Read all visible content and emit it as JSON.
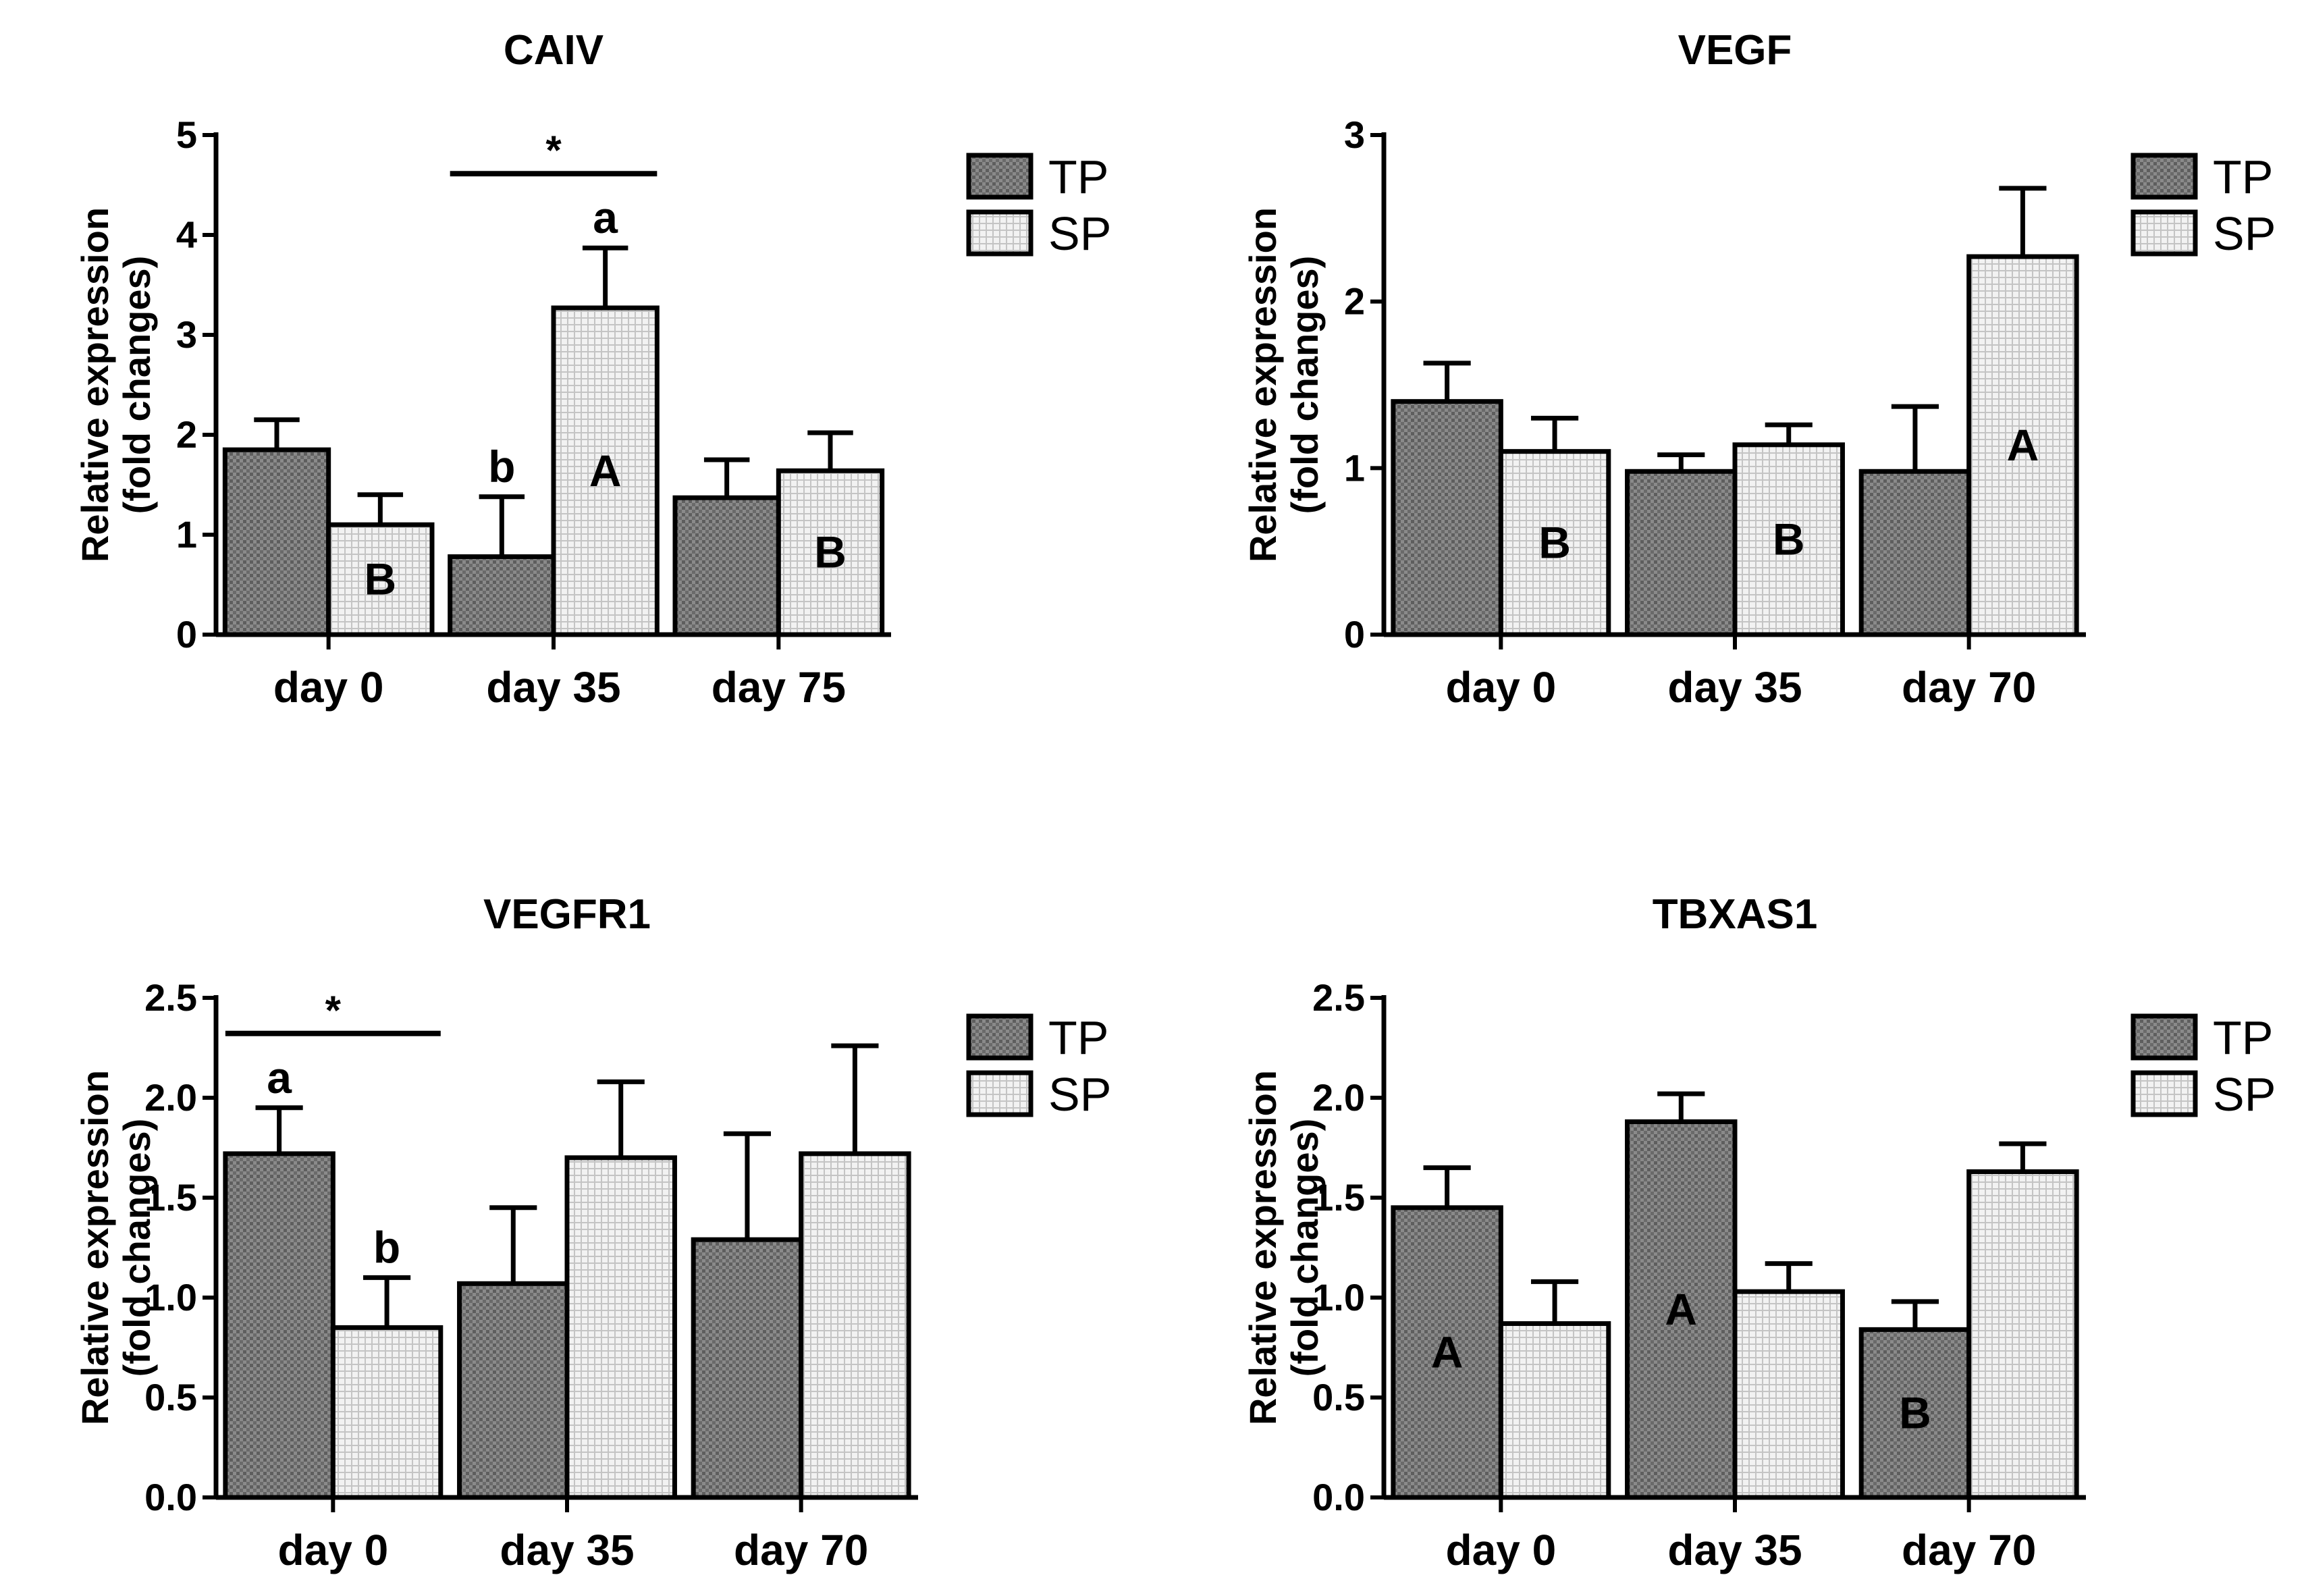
{
  "figure_title": "Relative expression of CAIV, VEGF, VEGFR1 and TBXAS1",
  "colors": {
    "tp": "#7a7a7a",
    "sp": "#d8d8d8",
    "axis": "#000000"
  },
  "chart_data": [
    {
      "type": "bar",
      "title": "CAIV",
      "xlabel": "",
      "ylabel": [
        "Relative expression",
        "(fold changes)"
      ],
      "ylim": [
        0,
        5
      ],
      "yticks": [
        "0",
        "1",
        "2",
        "3",
        "4",
        "5"
      ],
      "categories": [
        "day 0",
        "day 35",
        "day 75"
      ],
      "legend": [
        "TP",
        "SP"
      ],
      "series": [
        {
          "name": "TP",
          "values": [
            1.85,
            0.78,
            1.37
          ],
          "errors": [
            0.3,
            0.6,
            0.38
          ],
          "labels": [
            "",
            "b",
            ""
          ],
          "letters": [
            "",
            "",
            ""
          ]
        },
        {
          "name": "SP",
          "values": [
            1.1,
            3.27,
            1.64
          ],
          "errors": [
            0.3,
            0.6,
            0.38
          ],
          "labels": [
            "",
            "a",
            ""
          ],
          "letters": [
            "B",
            "A",
            "B"
          ]
        }
      ],
      "significance": [
        {
          "category_start": 1,
          "category_end": 1,
          "label": "*"
        }
      ]
    },
    {
      "type": "bar",
      "title": "VEGF",
      "xlabel": "",
      "ylabel": [
        "Relative expression",
        "(fold changes)"
      ],
      "ylim": [
        0,
        3
      ],
      "yticks": [
        "0",
        "1",
        "2",
        "3"
      ],
      "categories": [
        "day 0",
        "day 35",
        "day 70"
      ],
      "legend": [
        "TP",
        "SP"
      ],
      "series": [
        {
          "name": "TP",
          "values": [
            1.4,
            0.98,
            0.98
          ],
          "errors": [
            0.23,
            0.1,
            0.39
          ],
          "labels": [
            "",
            "",
            ""
          ],
          "letters": [
            "",
            "",
            ""
          ]
        },
        {
          "name": "SP",
          "values": [
            1.1,
            1.14,
            2.27
          ],
          "errors": [
            0.2,
            0.12,
            0.41
          ],
          "labels": [
            "",
            "",
            ""
          ],
          "letters": [
            "B",
            "B",
            "A"
          ]
        }
      ],
      "significance": []
    },
    {
      "type": "bar",
      "title": "VEGFR1",
      "xlabel": "",
      "ylabel": [
        "Relative expression",
        "(fold changes)"
      ],
      "ylim": [
        0,
        2.5
      ],
      "yticks": [
        "0.0",
        "0.5",
        "1.0",
        "1.5",
        "2.0",
        "2.5"
      ],
      "categories": [
        "day 0",
        "day 35",
        "day 70"
      ],
      "legend": [
        "TP",
        "SP"
      ],
      "series": [
        {
          "name": "TP",
          "values": [
            1.72,
            1.07,
            1.29
          ],
          "errors": [
            0.23,
            0.38,
            0.53
          ],
          "labels": [
            "a",
            "",
            ""
          ],
          "letters": [
            "",
            "",
            ""
          ]
        },
        {
          "name": "SP",
          "values": [
            0.85,
            1.7,
            1.72
          ],
          "errors": [
            0.25,
            0.38,
            0.54
          ],
          "labels": [
            "b",
            "",
            ""
          ],
          "letters": [
            "",
            "",
            ""
          ]
        }
      ],
      "significance": [
        {
          "category_start": 0,
          "category_end": 0,
          "label": "*"
        }
      ]
    },
    {
      "type": "bar",
      "title": "TBXAS1",
      "xlabel": "",
      "ylabel": [
        "Relative expression",
        "(fold changes)"
      ],
      "ylim": [
        0,
        2.5
      ],
      "yticks": [
        "0.0",
        "0.5",
        "1.0",
        "1.5",
        "2.0",
        "2.5"
      ],
      "categories": [
        "day 0",
        "day 35",
        "day 70"
      ],
      "legend": [
        "TP",
        "SP"
      ],
      "series": [
        {
          "name": "TP",
          "values": [
            1.45,
            1.88,
            0.84
          ],
          "errors": [
            0.2,
            0.14,
            0.14
          ],
          "labels": [
            "",
            "",
            ""
          ],
          "letters": [
            "A",
            "A",
            "B"
          ]
        },
        {
          "name": "SP",
          "values": [
            0.87,
            1.03,
            1.63
          ],
          "errors": [
            0.21,
            0.14,
            0.14
          ],
          "labels": [
            "",
            "",
            ""
          ],
          "letters": [
            "",
            "",
            ""
          ]
        }
      ],
      "significance": []
    }
  ]
}
